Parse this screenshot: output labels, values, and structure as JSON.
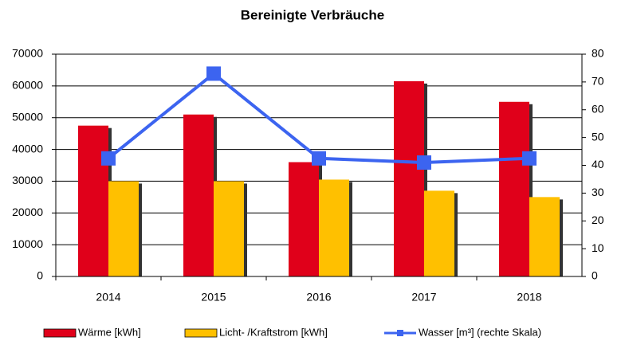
{
  "chart_data": {
    "type": "bar",
    "title": "Bereinigte Verbräuche",
    "categories": [
      "2014",
      "2015",
      "2016",
      "2017",
      "2018"
    ],
    "series": [
      {
        "name": "Wärme [kWh]",
        "color": "#e0001a",
        "values": [
          47500,
          51000,
          36000,
          61500,
          55000
        ]
      },
      {
        "name": "Licht- /Kraftstrom [kWh]",
        "color": "#ffc000",
        "values": [
          30000,
          30000,
          30500,
          27000,
          25000
        ]
      },
      {
        "name": "Wasser [m³] (rechte Skala)",
        "color": "#3c64f0",
        "type": "line",
        "axis": "y2",
        "values": [
          42.5,
          73,
          42.5,
          41,
          42.5
        ]
      }
    ],
    "ylim": [
      0,
      70000
    ],
    "yticks": [
      0,
      10000,
      20000,
      30000,
      40000,
      50000,
      60000,
      70000
    ],
    "y2lim": [
      0,
      80
    ],
    "y2ticks": [
      0,
      10,
      20,
      30,
      40,
      50,
      60,
      70,
      80
    ],
    "grid": true,
    "legend": "bottom"
  }
}
